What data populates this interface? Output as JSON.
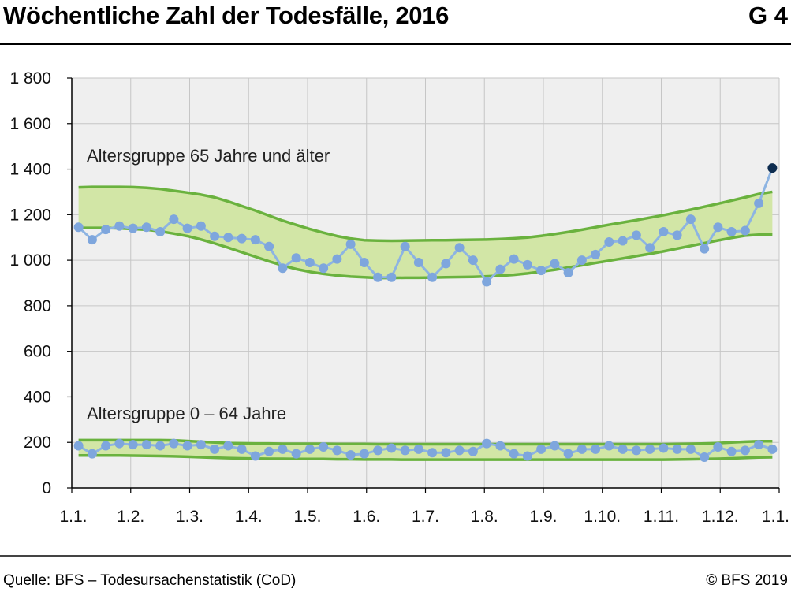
{
  "header": {
    "title": "Wöchentliche Zahl der Todesfälle, 2016",
    "graphic_number": "G 4"
  },
  "footer": {
    "source": "Quelle: BFS – Todesursachenstatistik (CoD)",
    "copyright": "© BFS 2019"
  },
  "colors": {
    "band_fill": "#d2e6a6",
    "band_line": "#6ab23e",
    "series_line": "#8db4e2",
    "series_point": "#7ea6dd",
    "last_point": "#0d2c4f",
    "plot_bg": "#efefef",
    "grid": "#c6c6c6"
  },
  "chart_data": {
    "type": "line",
    "title": "Wöchentliche Zahl der Todesfälle, 2016",
    "ylim": [
      0,
      1800
    ],
    "yticks": [
      0,
      200,
      400,
      600,
      800,
      1000,
      1200,
      1400,
      1600,
      1800
    ],
    "ytick_labels": [
      "0",
      "200",
      "400",
      "600",
      "800",
      "1 000",
      "1 200",
      "1 400",
      "1 600",
      "1 800"
    ],
    "xtick_labels": [
      "1.1.",
      "1.2.",
      "1.3.",
      "1.4.",
      "1.5.",
      "1.6.",
      "1.7.",
      "1.8.",
      "1.9.",
      "1.10.",
      "1.11.",
      "1.12.",
      "1.1."
    ],
    "grid": true,
    "annotations": [
      "Altersgruppe 65 Jahre und älter",
      "Altersgruppe 0 – 64 Jahre"
    ],
    "x_week": [
      1,
      2,
      3,
      4,
      5,
      6,
      7,
      8,
      9,
      10,
      11,
      12,
      13,
      14,
      15,
      16,
      17,
      18,
      19,
      20,
      21,
      22,
      23,
      24,
      25,
      26,
      27,
      28,
      29,
      30,
      31,
      32,
      33,
      34,
      35,
      36,
      37,
      38,
      39,
      40,
      41,
      42,
      43,
      44,
      45,
      46,
      47,
      48,
      49,
      50,
      51,
      52
    ],
    "series": [
      {
        "values": [
          1145,
          1090,
          1135,
          1150,
          1140,
          1145,
          1125,
          1180,
          1140,
          1150,
          1105,
          1100,
          1095,
          1090,
          1060,
          965,
          1010,
          990,
          965,
          1005,
          1070,
          990,
          925,
          925,
          1060,
          990,
          925,
          985,
          1055,
          1000,
          905,
          960,
          1005,
          980,
          955,
          985,
          945,
          1000,
          1025,
          1080,
          1085,
          1110,
          1055,
          1125,
          1110,
          1180,
          1050,
          1145,
          1125,
          1130,
          1250,
          1405
        ],
        "band_upper": [
          1320,
          1322,
          1322,
          1322,
          1321,
          1318,
          1313,
          1305,
          1297,
          1288,
          1276,
          1258,
          1238,
          1218,
          1196,
          1174,
          1155,
          1137,
          1121,
          1106,
          1095,
          1088,
          1086,
          1085,
          1086,
          1087,
          1088,
          1088,
          1089,
          1090,
          1091,
          1093,
          1096,
          1100,
          1107,
          1115,
          1124,
          1134,
          1145,
          1156,
          1166,
          1176,
          1187,
          1198,
          1210,
          1222,
          1235,
          1248,
          1262,
          1276,
          1291,
          1300
        ],
        "band_lower": [
          1142,
          1142,
          1142,
          1140,
          1137,
          1134,
          1127,
          1117,
          1106,
          1091,
          1074,
          1055,
          1035,
          1015,
          995,
          977,
          961,
          949,
          940,
          933,
          928,
          925,
          922,
          922,
          923,
          923,
          924,
          925,
          926,
          927,
          929,
          932,
          936,
          942,
          950,
          958,
          968,
          978,
          988,
          998,
          1008,
          1018,
          1028,
          1039,
          1051,
          1063,
          1075,
          1087,
          1098,
          1108,
          1112,
          1112
        ]
      },
      {
        "values": [
          185,
          150,
          185,
          195,
          190,
          190,
          185,
          195,
          185,
          190,
          170,
          185,
          170,
          140,
          160,
          170,
          150,
          170,
          180,
          165,
          145,
          150,
          165,
          175,
          165,
          170,
          155,
          155,
          165,
          160,
          195,
          185,
          150,
          140,
          170,
          185,
          150,
          170,
          170,
          185,
          170,
          165,
          170,
          175,
          170,
          170,
          135,
          180,
          160,
          165,
          190,
          170
        ],
        "band_upper": [
          210,
          210,
          210,
          210,
          210,
          210,
          210,
          209,
          206,
          203,
          200,
          197,
          196,
          195,
          195,
          194,
          194,
          194,
          194,
          193,
          193,
          193,
          192,
          192,
          192,
          192,
          192,
          192,
          192,
          192,
          192,
          192,
          192,
          192,
          192,
          192,
          192,
          192,
          192,
          192,
          192,
          192,
          192,
          192,
          193,
          194,
          195,
          197,
          200,
          203,
          205,
          205
        ],
        "band_lower": [
          143,
          143,
          143,
          143,
          142,
          141,
          140,
          139,
          137,
          135,
          133,
          131,
          130,
          129,
          128,
          128,
          127,
          127,
          127,
          126,
          126,
          125,
          125,
          125,
          124,
          124,
          124,
          124,
          124,
          124,
          124,
          124,
          124,
          124,
          124,
          124,
          124,
          124,
          124,
          124,
          124,
          124,
          124,
          124,
          125,
          126,
          127,
          128,
          130,
          132,
          134,
          135
        ]
      }
    ]
  }
}
